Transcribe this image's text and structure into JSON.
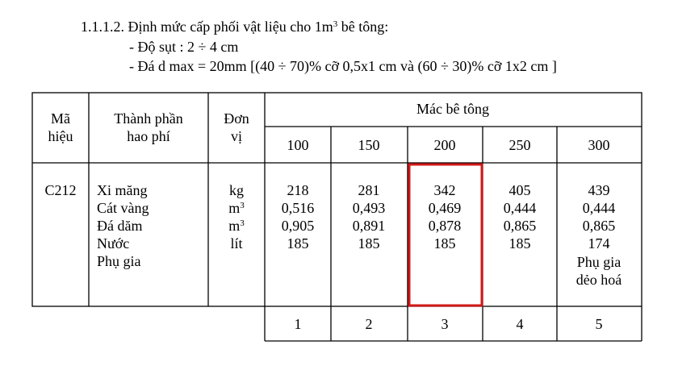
{
  "heading": {
    "text": "1.1.1.2. Định mức cấp phối vật liệu cho 1m",
    "sup": "3",
    "tail": " bê tông:"
  },
  "notes": [
    "- Độ sụt : 2 ÷ 4 cm",
    "- Đá d max = 20mm [(40 ÷ 70)% cỡ 0,5x1 cm và (60 ÷ 30)% cỡ 1x2 cm ]"
  ],
  "table": {
    "headers": {
      "code": [
        "Mã",
        "hiệu"
      ],
      "component": [
        "Thành phần",
        "hao phí"
      ],
      "unit": [
        "Đơn",
        "vị"
      ],
      "grade_group": "Mác bê tông",
      "grades": [
        "100",
        "150",
        "200",
        "250",
        "300"
      ]
    },
    "row": {
      "code": "C212",
      "components": [
        "Xi măng",
        "Cát vàng",
        "Đá dăm",
        "Nước",
        "Phụ gia"
      ],
      "units": [
        {
          "base": "kg"
        },
        {
          "base": "m",
          "sup": "3"
        },
        {
          "base": "m",
          "sup": "3"
        },
        {
          "base": "lít"
        }
      ],
      "values": [
        [
          "218",
          "0,516",
          "0,905",
          "185"
        ],
        [
          "281",
          "0,493",
          "0,891",
          "185"
        ],
        [
          "342",
          "0,469",
          "0,878",
          "185"
        ],
        [
          "405",
          "0,444",
          "0,865",
          "185"
        ],
        [
          "439",
          "0,444",
          "0,865",
          "174",
          "Phụ gia",
          "dẻo hoá"
        ]
      ]
    },
    "column_numbers": [
      "1",
      "2",
      "3",
      "4",
      "5"
    ]
  }
}
